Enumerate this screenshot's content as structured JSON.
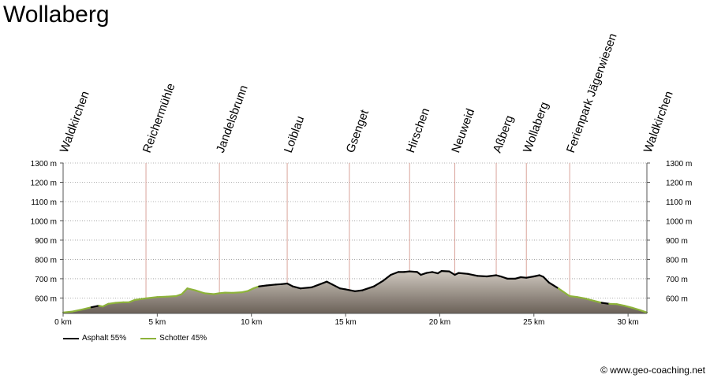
{
  "title": "Wollaberg",
  "credit": "© www.geo-coaching.net",
  "chart_data": {
    "type": "area",
    "xlim": [
      0,
      31
    ],
    "ylim": [
      520,
      1300
    ],
    "y_ticks": [
      600,
      700,
      800,
      900,
      1000,
      1100,
      1200,
      1300
    ],
    "y_tick_labels": [
      "600 m",
      "700 m",
      "800 m",
      "900 m",
      "1000 m",
      "1100 m",
      "1200 m",
      "1300 m"
    ],
    "x_ticks": [
      0,
      5,
      10,
      15,
      20,
      25,
      30
    ],
    "x_tick_labels": [
      "0 km",
      "5 km",
      "10 km",
      "15 km",
      "20 km",
      "25 km",
      "30 km"
    ],
    "grid": true,
    "legend_position": "bottom-left",
    "colors": {
      "asphalt": "#000000",
      "schotter": "#8db33a",
      "fill_top": "#cfc8bf",
      "fill_bottom": "#6b6158",
      "waypoint_line": "#d9a49a"
    },
    "waypoints": [
      {
        "name": "Waldkirchen",
        "km": 0
      },
      {
        "name": "Reichermühle",
        "km": 4.4
      },
      {
        "name": "Jandelsbrunn",
        "km": 8.3
      },
      {
        "name": "Loiblau",
        "km": 11.9
      },
      {
        "name": "Gsenget",
        "km": 15.2
      },
      {
        "name": "Hirschen",
        "km": 18.4
      },
      {
        "name": "Neuweid",
        "km": 20.8
      },
      {
        "name": "Aßberg",
        "km": 23.0
      },
      {
        "name": "Wollaberg",
        "km": 24.6
      },
      {
        "name": "Ferienpark Jägerwiesen",
        "km": 26.9
      },
      {
        "name": "Waldkirchen",
        "km": 31
      }
    ],
    "series": [
      {
        "name": "Asphalt 55%",
        "color": "#000000"
      },
      {
        "name": "Schotter 45%",
        "color": "#8db33a"
      }
    ],
    "profile": [
      [
        0,
        525,
        "s"
      ],
      [
        0.5,
        530,
        "s"
      ],
      [
        1,
        540,
        "s"
      ],
      [
        1.5,
        552,
        "s"
      ],
      [
        1.9,
        560,
        "a"
      ],
      [
        2.1,
        556,
        "s"
      ],
      [
        2.4,
        570,
        "s"
      ],
      [
        2.8,
        575,
        "s"
      ],
      [
        3.2,
        578,
        "s"
      ],
      [
        3.5,
        578,
        "s"
      ],
      [
        3.8,
        590,
        "s"
      ],
      [
        4.4,
        598,
        "s"
      ],
      [
        5,
        605,
        "s"
      ],
      [
        5.5,
        607,
        "s"
      ],
      [
        6,
        610,
        "s"
      ],
      [
        6.3,
        620,
        "s"
      ],
      [
        6.6,
        650,
        "s"
      ],
      [
        7,
        640,
        "s"
      ],
      [
        7.5,
        625,
        "s"
      ],
      [
        8,
        620,
        "s"
      ],
      [
        8.3,
        625,
        "s"
      ],
      [
        8.6,
        628,
        "s"
      ],
      [
        9,
        627,
        "s"
      ],
      [
        9.5,
        630,
        "s"
      ],
      [
        9.8,
        636,
        "s"
      ],
      [
        10.1,
        650,
        "s"
      ],
      [
        10.4,
        660,
        "s"
      ],
      [
        10.8,
        665,
        "a"
      ],
      [
        11.3,
        670,
        "a"
      ],
      [
        11.6,
        672,
        "a"
      ],
      [
        11.9,
        675,
        "a"
      ],
      [
        12.2,
        660,
        "a"
      ],
      [
        12.6,
        650,
        "a"
      ],
      [
        13.2,
        655,
        "a"
      ],
      [
        13.6,
        670,
        "a"
      ],
      [
        14,
        685,
        "a"
      ],
      [
        14.3,
        670,
        "a"
      ],
      [
        14.7,
        650,
        "a"
      ],
      [
        15,
        645,
        "a"
      ],
      [
        15.5,
        635,
        "a"
      ],
      [
        15.9,
        640,
        "a"
      ],
      [
        16.5,
        660,
        "a"
      ],
      [
        17,
        690,
        "a"
      ],
      [
        17.4,
        720,
        "a"
      ],
      [
        17.8,
        735,
        "a"
      ],
      [
        18.1,
        735,
        "a"
      ],
      [
        18.4,
        738,
        "a"
      ],
      [
        18.8,
        735,
        "a"
      ],
      [
        19,
        720,
        "a"
      ],
      [
        19.3,
        730,
        "a"
      ],
      [
        19.6,
        735,
        "a"
      ],
      [
        19.9,
        728,
        "a"
      ],
      [
        20.1,
        740,
        "a"
      ],
      [
        20.5,
        738,
        "a"
      ],
      [
        20.8,
        720,
        "a"
      ],
      [
        21,
        730,
        "a"
      ],
      [
        21.5,
        725,
        "a"
      ],
      [
        22,
        715,
        "a"
      ],
      [
        22.5,
        712,
        "a"
      ],
      [
        23,
        718,
        "a"
      ],
      [
        23.3,
        710,
        "a"
      ],
      [
        23.6,
        700,
        "a"
      ],
      [
        24,
        700,
        "a"
      ],
      [
        24.3,
        708,
        "a"
      ],
      [
        24.6,
        705,
        "a"
      ],
      [
        25,
        712,
        "a"
      ],
      [
        25.3,
        718,
        "a"
      ],
      [
        25.5,
        710,
        "a"
      ],
      [
        25.8,
        680,
        "a"
      ],
      [
        26.3,
        650,
        "a"
      ],
      [
        26.9,
        610,
        "s"
      ],
      [
        27.3,
        605,
        "s"
      ],
      [
        27.7,
        598,
        "s"
      ],
      [
        28.2,
        585,
        "s"
      ],
      [
        28.6,
        575,
        "s"
      ],
      [
        29,
        570,
        "a"
      ],
      [
        29.4,
        568,
        "s"
      ],
      [
        29.8,
        560,
        "s"
      ],
      [
        30.2,
        550,
        "s"
      ],
      [
        30.6,
        538,
        "s"
      ],
      [
        31,
        525,
        "s"
      ]
    ]
  }
}
